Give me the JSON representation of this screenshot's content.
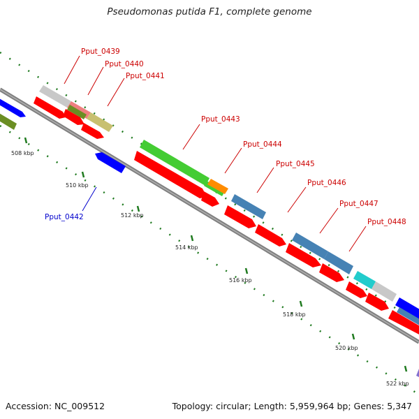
{
  "title": "Pseudomonas putida F1, complete genome",
  "accession": "Accession: NC_009512",
  "summary": "Topology: circular; Length: 5,959,964 bp; Genes: 5,347",
  "colors": {
    "red": "#ff0000",
    "blue": "#0000ff",
    "green": "#44cc33",
    "olive": "#6b8e23",
    "khaki": "#c8c070",
    "grey": "#c8c8c8",
    "salmon": "#ee7f7f",
    "orange": "#ff8c00",
    "steel": "#4682b4",
    "cyan": "#22cccc",
    "lavender": "#8470d0",
    "tick": "#008000",
    "label_red": "#cc0000",
    "label_blue": "#0000cc"
  },
  "ticks": [
    {
      "label": "508 kbp"
    },
    {
      "label": "510 kbp"
    },
    {
      "label": "512 kbp"
    },
    {
      "label": "514 kbp"
    },
    {
      "label": "516 kbp"
    },
    {
      "label": "518 kbp"
    },
    {
      "label": "520 kbp"
    },
    {
      "label": "522 kbp"
    }
  ],
  "gene_labels": [
    {
      "name": "Pput_0439"
    },
    {
      "name": "Pput_0440"
    },
    {
      "name": "Pput_0441"
    },
    {
      "name": "Pput_0442"
    },
    {
      "name": "Pput_0443"
    },
    {
      "name": "Pput_0444"
    },
    {
      "name": "Pput_0445"
    },
    {
      "name": "Pput_0446"
    },
    {
      "name": "Pput_0447"
    },
    {
      "name": "Pput_0448"
    }
  ]
}
